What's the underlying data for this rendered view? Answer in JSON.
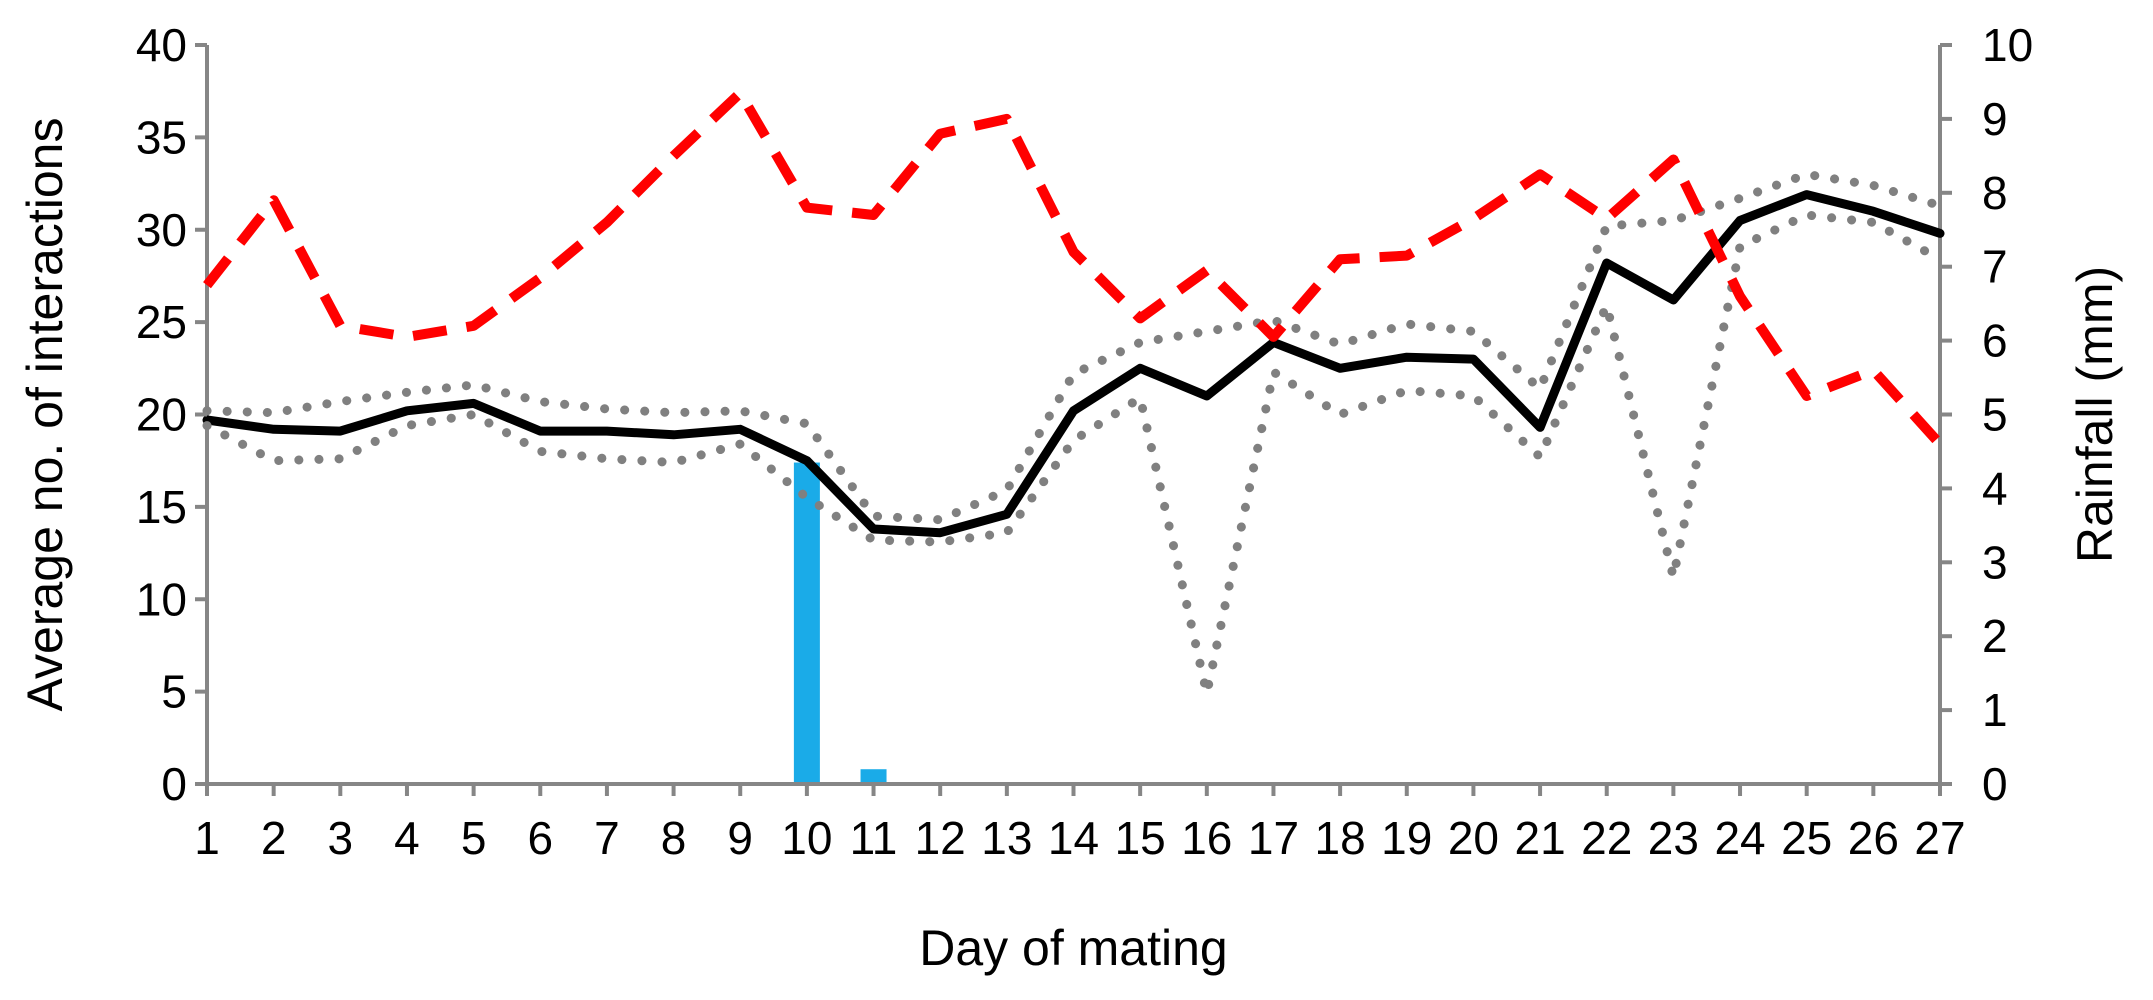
{
  "chart_data": {
    "type": "line",
    "xlabel": "Day of mating",
    "ylabel": "Average no. of interactions",
    "y2label": "Rainfall (mm)",
    "x": [
      1,
      2,
      3,
      4,
      5,
      6,
      7,
      8,
      9,
      10,
      11,
      12,
      13,
      14,
      15,
      16,
      17,
      18,
      19,
      20,
      21,
      22,
      23,
      24,
      25,
      26,
      27
    ],
    "ylim": [
      0,
      40
    ],
    "y_ticks": [
      0,
      5,
      10,
      15,
      20,
      25,
      30,
      35,
      40
    ],
    "y2lim": [
      0,
      10
    ],
    "y2_ticks": [
      0,
      1,
      2,
      3,
      4,
      5,
      6,
      7,
      8,
      9,
      10
    ],
    "series": [
      {
        "axis": "left",
        "style": "solid",
        "color": "#000000",
        "values": [
          19.7,
          19.2,
          19.1,
          20.2,
          20.6,
          19.1,
          19.1,
          18.9,
          19.2,
          17.5,
          13.8,
          13.6,
          14.6,
          20.2,
          22.5,
          21.0,
          23.9,
          22.5,
          23.1,
          23.0,
          19.3,
          28.2,
          26.2,
          30.5,
          31.9,
          31.0,
          29.8
        ]
      },
      {
        "axis": "left",
        "style": "dotted",
        "color": "#808080",
        "values": [
          20.2,
          20.1,
          20.7,
          21.2,
          21.6,
          20.7,
          20.3,
          20.1,
          20.2,
          19.5,
          14.5,
          14.3,
          15.9,
          22.2,
          23.9,
          24.5,
          25.1,
          23.8,
          24.9,
          24.5,
          21.4,
          30.2,
          30.5,
          31.7,
          33.0,
          32.4,
          31.3
        ]
      },
      {
        "axis": "left",
        "style": "dotted",
        "color": "#808080",
        "values": [
          19.4,
          17.5,
          17.6,
          19.4,
          20.0,
          18.0,
          17.6,
          17.4,
          18.4,
          15.5,
          13.2,
          13.1,
          13.6,
          18.6,
          20.9,
          4.9,
          22.3,
          20.0,
          21.3,
          21.0,
          17.7,
          25.9,
          11.2,
          29.1,
          30.8,
          30.4,
          28.4
        ]
      },
      {
        "axis": "right",
        "style": "dashed",
        "color": "#ff0000",
        "values": [
          6.75,
          7.9,
          6.2,
          6.05,
          6.2,
          6.85,
          7.6,
          8.5,
          9.35,
          7.8,
          7.7,
          8.8,
          9.0,
          7.2,
          6.3,
          6.95,
          6.05,
          7.1,
          7.15,
          7.65,
          8.25,
          7.65,
          8.45,
          6.6,
          5.25,
          5.6,
          4.6
        ]
      },
      {
        "axis": "right",
        "type": "bar",
        "color": "#1aabe8",
        "values": [
          0,
          0,
          0,
          0,
          0,
          0,
          0,
          0,
          0,
          4.35,
          0.2,
          0,
          0,
          0,
          0,
          0,
          0,
          0,
          0,
          0,
          0,
          0,
          0,
          0,
          0,
          0,
          0
        ]
      }
    ],
    "grid": false,
    "legend": "none"
  }
}
